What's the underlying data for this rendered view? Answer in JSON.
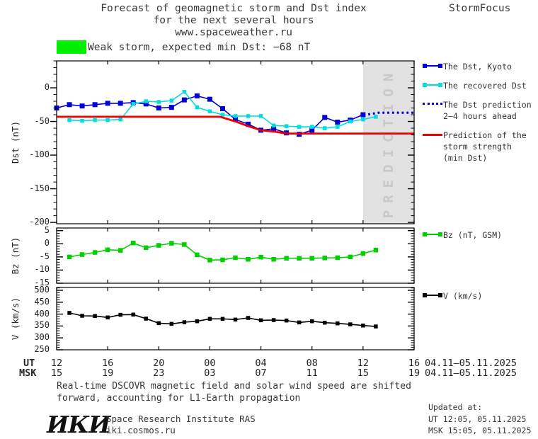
{
  "header": {
    "title_line1": "Forecast of geomagnetic storm and Dst index",
    "title_line2": "for the next several hours",
    "title_line3": "www.spaceweather.ru",
    "brand": "StormFocus"
  },
  "storm_banner": {
    "label": "Weak storm, expected min Dst: −68 nT",
    "expected_min_dst_nT": -68,
    "storm_level": "Weak storm"
  },
  "legend": {
    "dst_kyoto": "The Dst, Kyoto",
    "recovered": "The recovered Dst",
    "prediction_l1": "The Dst prediction",
    "prediction_l2": "2–4 hours ahead",
    "storm_l1": "Prediction of the",
    "storm_l2": "storm strength",
    "storm_l3": "(min Dst)",
    "bz": "Bz (nT, GSM)",
    "v": "V (km/s)"
  },
  "colors": {
    "dst_blue": "#0000d8",
    "recovered_cyan": "#00dede",
    "prediction_blue": "#0000d8",
    "storm_red": "#ee0000",
    "bz_green": "#00cf00",
    "v_black": "#000000",
    "storm_level": "#00f000",
    "band": "#e2e2e2",
    "band_text": "#c9c9c9"
  },
  "chart_data": {
    "type": "line",
    "x_axis": {
      "hours_span": 28,
      "tick_hours": [
        0,
        4,
        8,
        12,
        16,
        20,
        24,
        28
      ],
      "ut_label": "UT",
      "msk_label": "MSK",
      "ut_labels": [
        "12",
        "16",
        "20",
        "00",
        "04",
        "08",
        "12",
        "16"
      ],
      "msk_labels": [
        "15",
        "19",
        "23",
        "03",
        "07",
        "11",
        "15",
        "19"
      ],
      "ut_date": "04.11–05.11.2025",
      "msk_date": "04.11–05.11.2025"
    },
    "panels": [
      {
        "id": "dst",
        "ylabel": "Dst (nT)",
        "ymin": -202,
        "ymax": 40,
        "minor_step": 10,
        "yticks": [
          {
            "v": 0,
            "label": "0"
          },
          {
            "v": -50,
            "label": "-50"
          },
          {
            "v": -100,
            "label": "-100"
          },
          {
            "v": -150,
            "label": "-150"
          },
          {
            "v": -200,
            "label": "-200"
          }
        ],
        "prediction_band": {
          "start_hour": 24,
          "end_hour": 28,
          "label": "PREDICTION"
        },
        "series": [
          {
            "name": "The Dst, Kyoto",
            "color_key": "dst_blue",
            "marker": 7,
            "start_hour": 0,
            "values": [
              -30,
              -25,
              -27,
              -25,
              -23,
              -23,
              -22,
              -24,
              -30,
              -29,
              -18,
              -12,
              -17,
              -31,
              -47,
              -54,
              -63,
              -61,
              -67,
              -69,
              -63,
              -44,
              -51,
              -48,
              -40
            ]
          },
          {
            "name": "The recovered Dst",
            "color_key": "recovered_cyan",
            "marker": 5.5,
            "start_hour": 1,
            "values": [
              -48,
              -49,
              -48,
              -48,
              -47,
              -24,
              -20,
              -21,
              -19,
              -6,
              -29,
              -35,
              -40,
              -42,
              -42,
              -42,
              -56,
              -57,
              -58,
              -58,
              -60,
              -58,
              -50,
              -47,
              -43
            ]
          },
          {
            "name": "The Dst prediction 2–4 hours ahead",
            "color_key": "prediction_blue",
            "dotted": true,
            "x": [
              24.4,
              25.2,
              28
            ],
            "values": [
              -39.5,
              -37,
              -37
            ]
          },
          {
            "name": "Prediction of the storm strength (min Dst)",
            "color_key": "storm_red",
            "width": 2.8,
            "x": [
              0,
              12.8,
              14,
              15,
              16,
              17,
              18,
              28
            ],
            "values": [
              -43,
              -43,
              -50,
              -57,
              -63,
              -65,
              -68,
              -68
            ]
          }
        ]
      },
      {
        "id": "bz",
        "ylabel": "Bz (nT)",
        "ymin": -15,
        "ymax": 6,
        "minor_step": 1,
        "yticks": [
          {
            "v": 5,
            "label": "5"
          },
          {
            "v": 0,
            "label": "0"
          },
          {
            "v": -5,
            "label": "-5"
          },
          {
            "v": -10,
            "label": "-10"
          },
          {
            "v": -15,
            "label": "-15"
          }
        ],
        "series": [
          {
            "name": "Bz (nT, GSM)",
            "color_key": "bz_green",
            "marker": 6.5,
            "start_hour": 1,
            "values": [
              -5.0,
              -4.1,
              -3.3,
              -2.3,
              -2.5,
              0.3,
              -1.5,
              -0.6,
              0.2,
              -0.3,
              -4.2,
              -6.2,
              -6.1,
              -5.3,
              -5.9,
              -5.1,
              -5.9,
              -5.5,
              -5.5,
              -5.5,
              -5.4,
              -5.3,
              -5.0,
              -3.7,
              -2.4
            ]
          }
        ]
      },
      {
        "id": "v",
        "ylabel": "V (km/s)",
        "ymin": 250,
        "ymax": 512,
        "minor_step": 10,
        "yticks": [
          {
            "v": 500,
            "label": "500"
          },
          {
            "v": 450,
            "label": "450"
          },
          {
            "v": 400,
            "label": "400"
          },
          {
            "v": 350,
            "label": "350"
          },
          {
            "v": 300,
            "label": "300"
          },
          {
            "v": 250,
            "label": "250"
          }
        ],
        "series": [
          {
            "name": "V (km/s)",
            "color_key": "v_black",
            "marker": 5.5,
            "start_hour": 1,
            "values": [
              405,
              393,
              392,
              386,
              397,
              398,
              381,
              362,
              359,
              366,
              370,
              380,
              380,
              377,
              384,
              374,
              375,
              373,
              365,
              370,
              364,
              361,
              357,
              352,
              348
            ]
          }
        ]
      }
    ]
  },
  "footer": {
    "note_line1": "Real-time DSCOVR magnetic field and solar wind speed are shifted",
    "note_line2": "forward, accounting for L1-Earth propagation",
    "logo": "ИКИ",
    "institute": "Space Research Institute RAS",
    "site": "iki.cosmos.ru",
    "updated_label": "Updated at:",
    "updated_ut": "UT  12:05, 05.11.2025",
    "updated_msk": "MSK 15:05, 05.11.2025"
  }
}
